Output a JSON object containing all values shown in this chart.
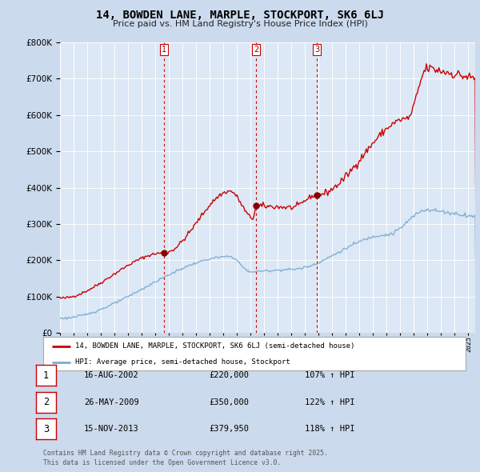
{
  "title": "14, BOWDEN LANE, MARPLE, STOCKPORT, SK6 6LJ",
  "subtitle": "Price paid vs. HM Land Registry's House Price Index (HPI)",
  "background_color": "#ccdaed",
  "plot_bg_color": "#dce8f5",
  "ylim": [
    0,
    800000
  ],
  "yticks": [
    0,
    100000,
    200000,
    300000,
    400000,
    500000,
    600000,
    700000,
    800000
  ],
  "xlim_start": 1995.0,
  "xlim_end": 2025.5,
  "legend_label_red": "14, BOWDEN LANE, MARPLE, STOCKPORT, SK6 6LJ (semi-detached house)",
  "legend_label_blue": "HPI: Average price, semi-detached house, Stockport",
  "footer": "Contains HM Land Registry data © Crown copyright and database right 2025.\nThis data is licensed under the Open Government Licence v3.0.",
  "sales": [
    {
      "num": 1,
      "date_num": 2002.62,
      "price": 220000,
      "label": "16-AUG-2002",
      "price_str": "£220,000",
      "pct": "107%",
      "dir": "↑"
    },
    {
      "num": 2,
      "date_num": 2009.4,
      "price": 350000,
      "label": "26-MAY-2009",
      "price_str": "£350,000",
      "pct": "122%",
      "dir": "↑"
    },
    {
      "num": 3,
      "date_num": 2013.88,
      "price": 379950,
      "label": "15-NOV-2013",
      "price_str": "£379,950",
      "pct": "118%",
      "dir": "↑"
    }
  ],
  "red_line_color": "#cc0000",
  "blue_line_color": "#7aabcf"
}
